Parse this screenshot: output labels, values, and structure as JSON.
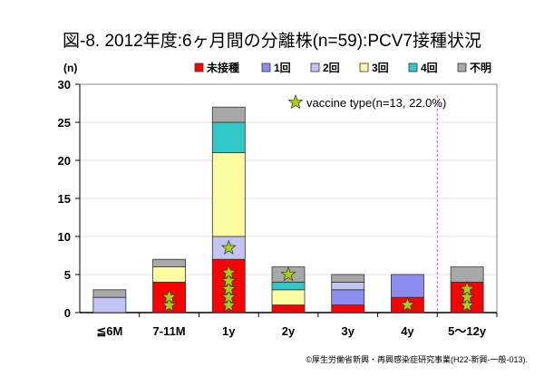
{
  "chart_data": {
    "type": "bar",
    "stacked": true,
    "title": "図-8. 2012年度:6ヶ月間の分離株(n=59):PCV7接種状況",
    "ylabel": "(n)",
    "ylim": [
      0,
      30
    ],
    "yticks": [
      0,
      5,
      10,
      15,
      20,
      25,
      30
    ],
    "grid": true,
    "legend_position": "top-right",
    "categories": [
      "≦6M",
      "7-11M",
      "1y",
      "2y",
      "3y",
      "4y",
      "5～12y"
    ],
    "series": [
      {
        "name": "未接種",
        "color": "#ff0000",
        "values": [
          0,
          4,
          7,
          1,
          1,
          2,
          4
        ]
      },
      {
        "name": "1回",
        "color": "#8c8cf0",
        "values": [
          0,
          0,
          0,
          0,
          2,
          3,
          0
        ]
      },
      {
        "name": "2回",
        "color": "#c4c4f4",
        "values": [
          2,
          0,
          3,
          0,
          1,
          0,
          0
        ]
      },
      {
        "name": "3回",
        "color": "#fcfca0",
        "values": [
          0,
          2,
          11,
          2,
          0,
          0,
          0
        ]
      },
      {
        "name": "4回",
        "color": "#33c8c8",
        "values": [
          0,
          0,
          4,
          1,
          0,
          0,
          0
        ]
      },
      {
        "name": "不明",
        "color": "#a8a8a8",
        "values": [
          1,
          1,
          2,
          2,
          1,
          0,
          2
        ]
      }
    ],
    "vaccine_type_stars": [
      {
        "category": "7-11M",
        "series": "未接種",
        "count": 2
      },
      {
        "category": "1y",
        "series": "未接種",
        "count": 5
      },
      {
        "category": "1y",
        "series": "2回",
        "count": 1
      },
      {
        "category": "2y",
        "series": "不明",
        "count": 1
      },
      {
        "category": "4y",
        "series": "未接種",
        "count": 1
      },
      {
        "category": "5～12y",
        "series": "未接種",
        "count": 3
      }
    ],
    "annotation": "vaccine type(n=13, 22.0%)",
    "divider_between": [
      "4y",
      "5～12y"
    ]
  },
  "footer": "©厚生労働省新興・再興感染症研究事業(H22-新興-一般-013)."
}
